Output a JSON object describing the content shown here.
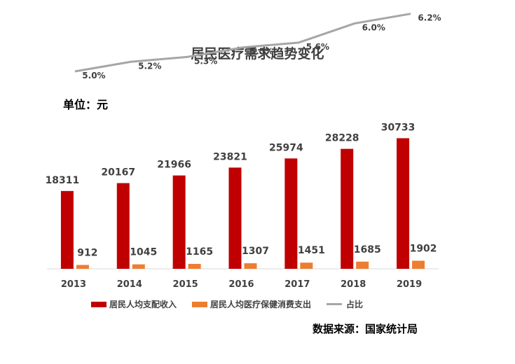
{
  "title": "居民医疗需求趋势变化",
  "unit_label": "单位：元",
  "source_label": "数据来源：国家统计局",
  "colors": {
    "income": "#C00000",
    "spend": "#ED7D31",
    "ratio": "#A6A6A6"
  },
  "chart_data": {
    "type": "bar",
    "categories": [
      "2013",
      "2014",
      "2015",
      "2016",
      "2017",
      "2018",
      "2019"
    ],
    "series": [
      {
        "name": "居民人均支配收入",
        "type": "bar",
        "values": [
          18311,
          20167,
          21966,
          23821,
          25974,
          28228,
          30733
        ]
      },
      {
        "name": "居民人均医疗保健消费支出",
        "type": "bar",
        "values": [
          912,
          1045,
          1165,
          1307,
          1451,
          1685,
          1902
        ]
      },
      {
        "name": "占比",
        "type": "line",
        "values": [
          5.0,
          5.2,
          5.3,
          5.5,
          5.6,
          6.0,
          6.2
        ],
        "labels": [
          "5.0%",
          "5.2%",
          "5.3%",
          "5.5%",
          "5.6%",
          "6.0%",
          "6.2%"
        ]
      }
    ],
    "legend_position": "bottom",
    "grid": false
  }
}
